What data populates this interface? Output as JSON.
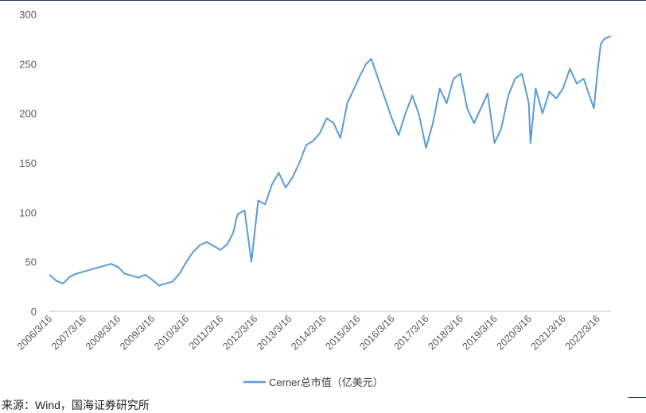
{
  "chart_data": {
    "type": "line",
    "title": "",
    "xlabel": "",
    "ylabel": "",
    "ylim": [
      0,
      300
    ],
    "yticks": [
      0,
      50,
      100,
      150,
      200,
      250,
      300
    ],
    "x_tick_labels": [
      "2006/3/16",
      "2007/3/16",
      "2008/3/16",
      "2009/3/16",
      "2010/3/16",
      "2011/3/16",
      "2012/3/16",
      "2013/3/16",
      "2014/3/16",
      "2015/3/16",
      "2016/3/16",
      "2017/3/16",
      "2018/3/16",
      "2019/3/16",
      "2020/3/16",
      "2021/3/16",
      "2022/3/16"
    ],
    "grid": false,
    "legend_position": "bottom",
    "series": [
      {
        "name": "Cerner总市值（亿美元）",
        "color": "#5b9bd5",
        "x": [
          2006.2,
          2006.4,
          2006.6,
          2006.8,
          2007.0,
          2007.2,
          2007.4,
          2007.6,
          2007.8,
          2008.0,
          2008.2,
          2008.4,
          2008.6,
          2008.8,
          2009.0,
          2009.2,
          2009.4,
          2009.6,
          2009.8,
          2010.0,
          2010.2,
          2010.4,
          2010.6,
          2010.8,
          2011.0,
          2011.2,
          2011.4,
          2011.55,
          2011.6,
          2011.65,
          2011.7,
          2011.9,
          2012.1,
          2012.3,
          2012.5,
          2012.7,
          2012.9,
          2013.1,
          2013.3,
          2013.5,
          2013.7,
          2013.9,
          2014.1,
          2014.3,
          2014.5,
          2014.7,
          2014.9,
          2015.1,
          2015.3,
          2015.45,
          2015.6,
          2015.8,
          2016.0,
          2016.2,
          2016.4,
          2016.6,
          2016.8,
          2017.0,
          2017.2,
          2017.4,
          2017.6,
          2017.8,
          2018.0,
          2018.2,
          2018.4,
          2018.6,
          2018.8,
          2019.0,
          2019.2,
          2019.4,
          2019.6,
          2019.8,
          2020.0,
          2020.2,
          2020.25,
          2020.4,
          2020.6,
          2020.8,
          2021.0,
          2021.2,
          2021.4,
          2021.6,
          2021.8,
          2022.0,
          2022.1,
          2022.2,
          2022.3,
          2022.4,
          2022.6
        ],
        "y": [
          37,
          31,
          28,
          35,
          38,
          40,
          42,
          44,
          46,
          48,
          45,
          38,
          36,
          34,
          37,
          32,
          26,
          28,
          30,
          38,
          50,
          60,
          67,
          70,
          66,
          62,
          68,
          78,
          83,
          92,
          98,
          102,
          50,
          112,
          108,
          128,
          140,
          125,
          135,
          150,
          168,
          172,
          180,
          195,
          190,
          175,
          210,
          225,
          240,
          250,
          255,
          235,
          215,
          195,
          178,
          200,
          218,
          198,
          165,
          190,
          225,
          210,
          235,
          240,
          205,
          190,
          205,
          220,
          170,
          185,
          218,
          235,
          240,
          210,
          170,
          225,
          200,
          222,
          215,
          225,
          245,
          230,
          235,
          215,
          205,
          240,
          270,
          275,
          278
        ]
      }
    ]
  },
  "legend": {
    "label": "Cerner总市值（亿美元）"
  },
  "caption": {
    "text": "来源：Wind，国海证券研究所"
  }
}
